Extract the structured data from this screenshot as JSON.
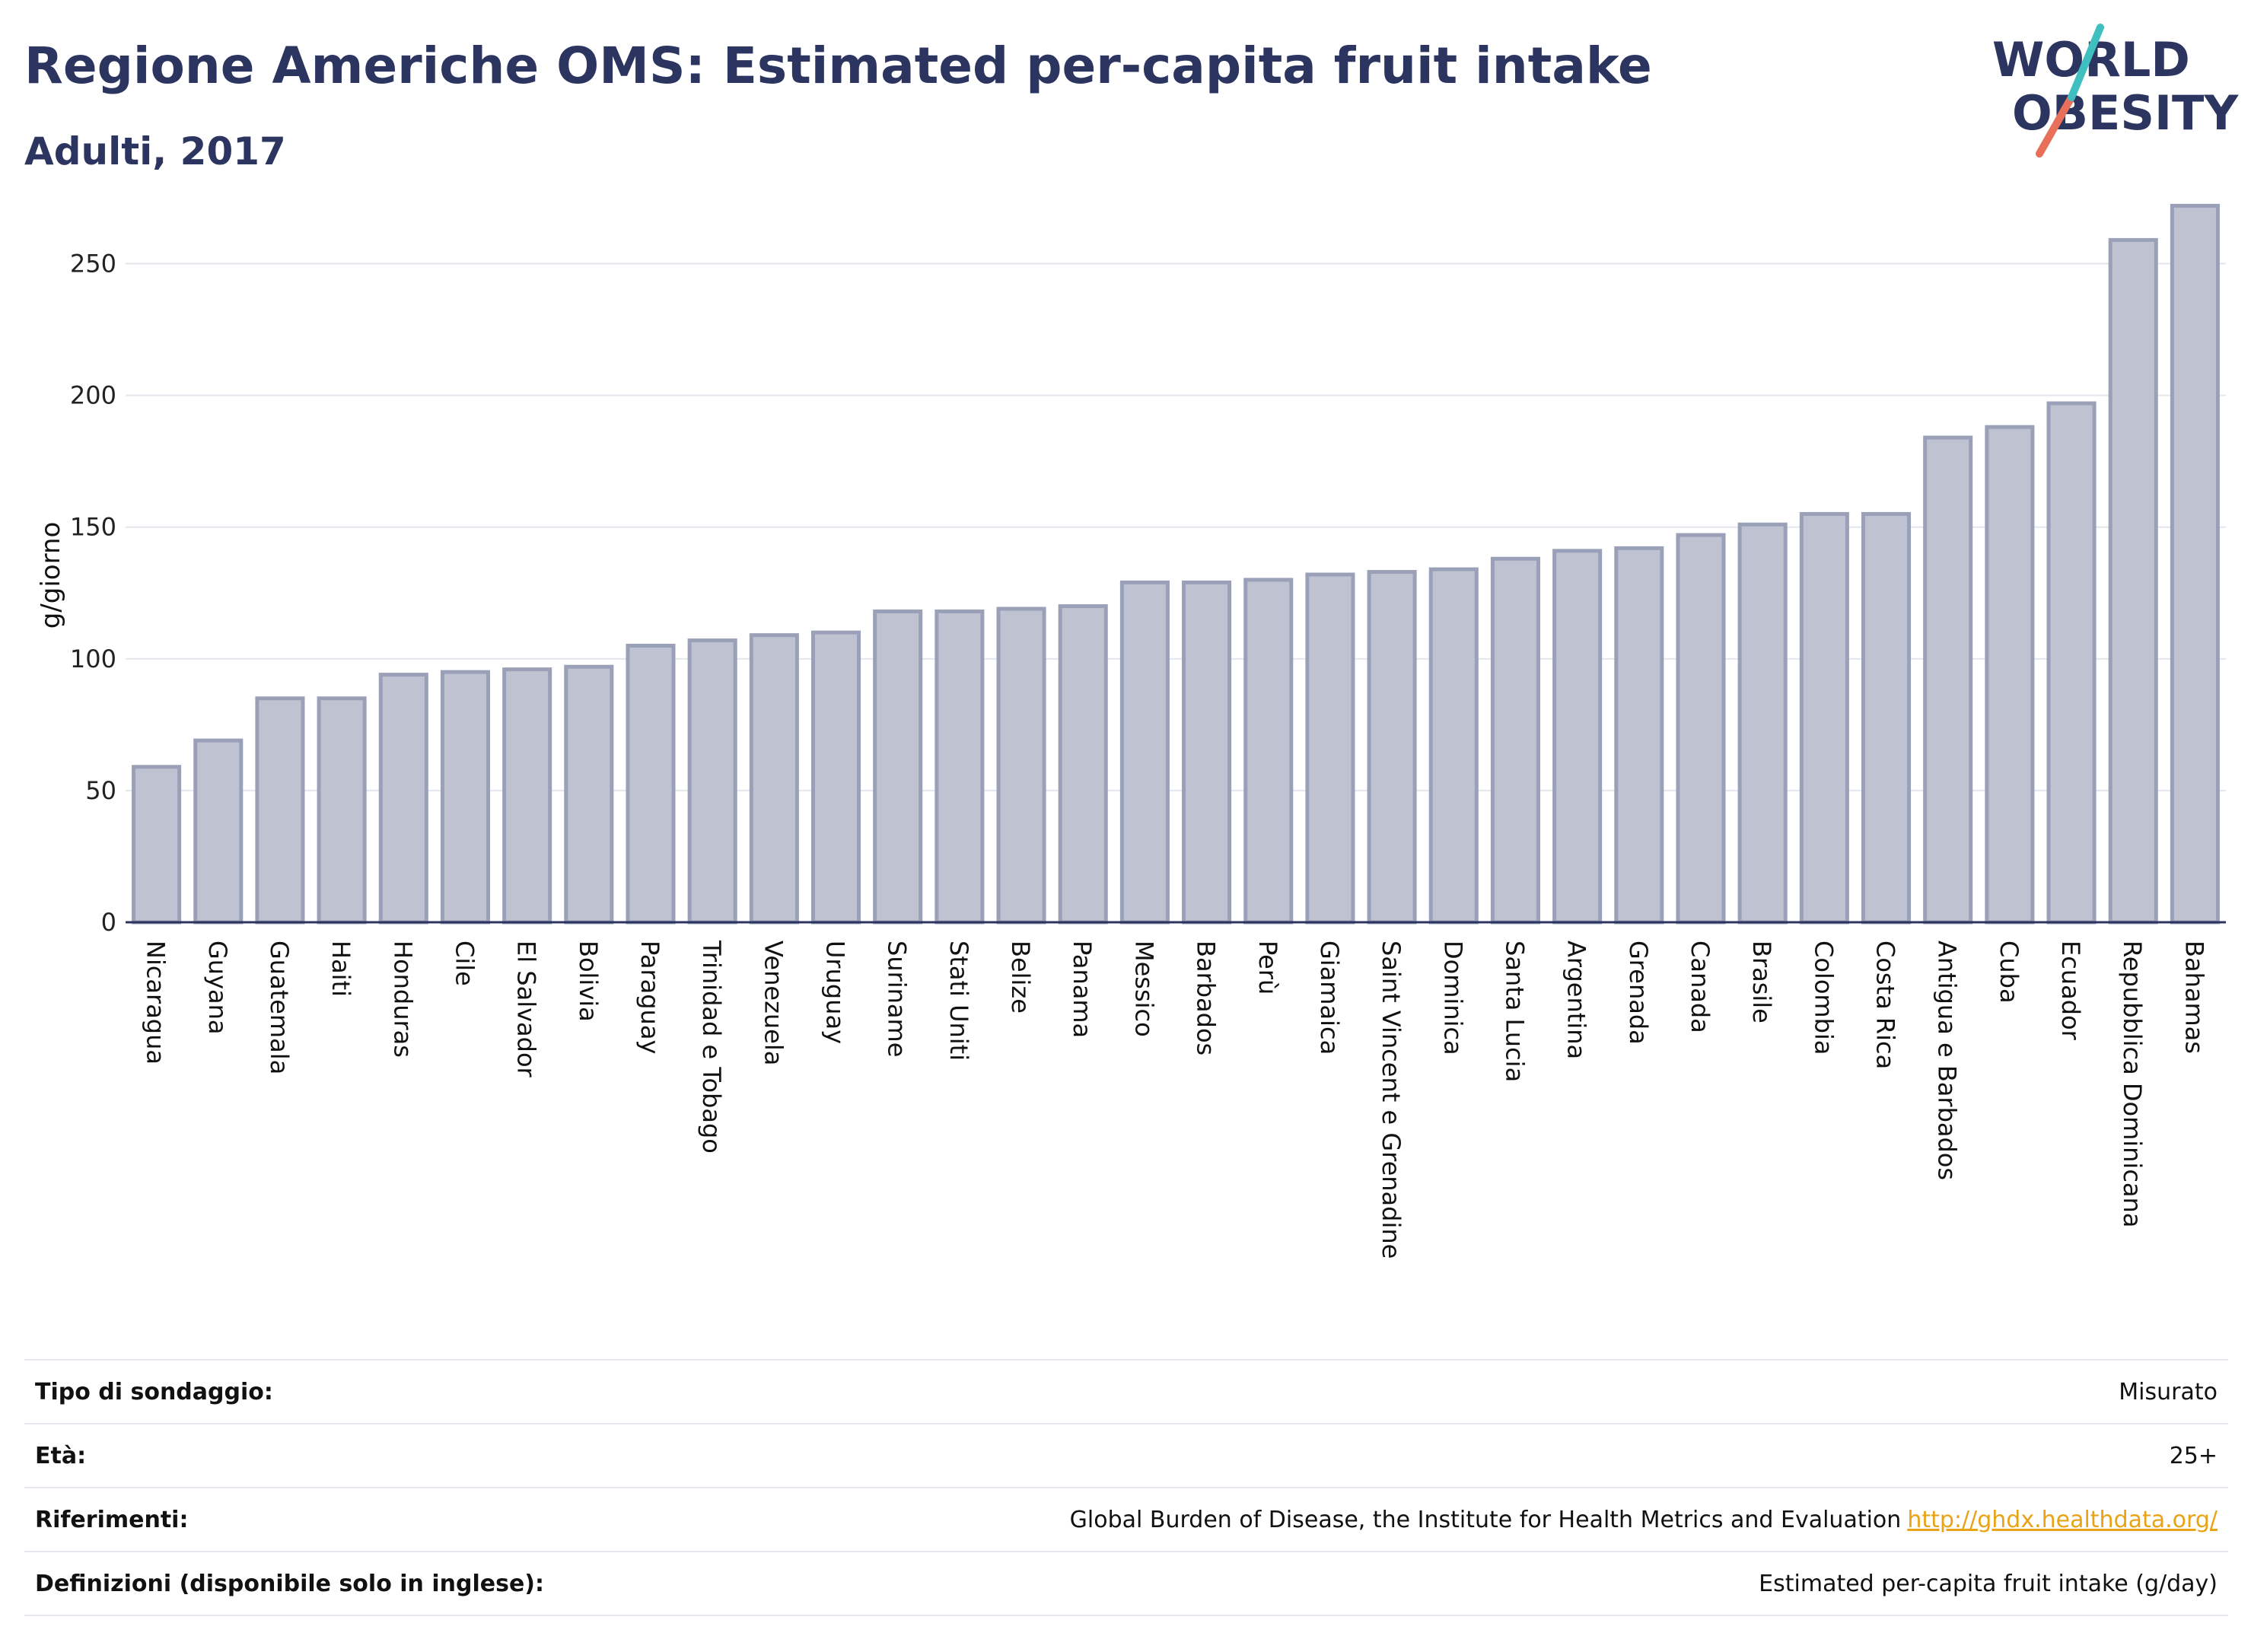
{
  "header": {
    "title": "Regione Americhe OMS: Estimated per-capita fruit intake",
    "subtitle": "Adulti, 2017"
  },
  "logo": {
    "line1": "WORLD",
    "line2": "OBESITY"
  },
  "colors": {
    "bar_fill": "#bfc3d1",
    "bar_stroke": "#9aa0b8",
    "text": "#2b3560",
    "grid": "#e4e6ee",
    "link": "#e8a317",
    "logo_teal": "#3fbfbf",
    "logo_coral": "#e8705a"
  },
  "chart_data": {
    "type": "bar",
    "ylabel": "g/giorno",
    "ylim": [
      0,
      275
    ],
    "yticks": [
      0,
      50,
      100,
      150,
      200,
      250
    ],
    "grid": true,
    "categories": [
      "Nicaragua",
      "Guyana",
      "Guatemala",
      "Haiti",
      "Honduras",
      "Cile",
      "El Salvador",
      "Bolivia",
      "Paraguay",
      "Trinidad e Tobago",
      "Venezuela",
      "Uruguay",
      "Suriname",
      "Stati Uniti",
      "Belize",
      "Panama",
      "Messico",
      "Barbados",
      "Perù",
      "Giamaica",
      "Saint Vincent e Grenadine",
      "Dominica",
      "Santa Lucia",
      "Argentina",
      "Grenada",
      "Canada",
      "Brasile",
      "Colombia",
      "Costa Rica",
      "Antigua e Barbados",
      "Cuba",
      "Ecuador",
      "Repubblica Dominicana",
      "Bahamas"
    ],
    "values": [
      59,
      69,
      85,
      85,
      94,
      95,
      96,
      97,
      105,
      107,
      109,
      110,
      118,
      118,
      119,
      120,
      129,
      129,
      130,
      132,
      133,
      134,
      138,
      141,
      142,
      147,
      151,
      155,
      155,
      184,
      188,
      197,
      259,
      272
    ]
  },
  "meta": [
    {
      "label": "Tipo di sondaggio:",
      "value": "Misurato"
    },
    {
      "label": "Età:",
      "value": "25+"
    },
    {
      "label": "Riferimenti:",
      "value": "Global Burden of Disease, the Institute for Health Metrics and Evaluation",
      "link": "http://ghdx.healthdata.org/"
    },
    {
      "label": "Definizioni (disponibile solo in inglese):",
      "value": "Estimated per-capita fruit intake (g/day)"
    }
  ]
}
